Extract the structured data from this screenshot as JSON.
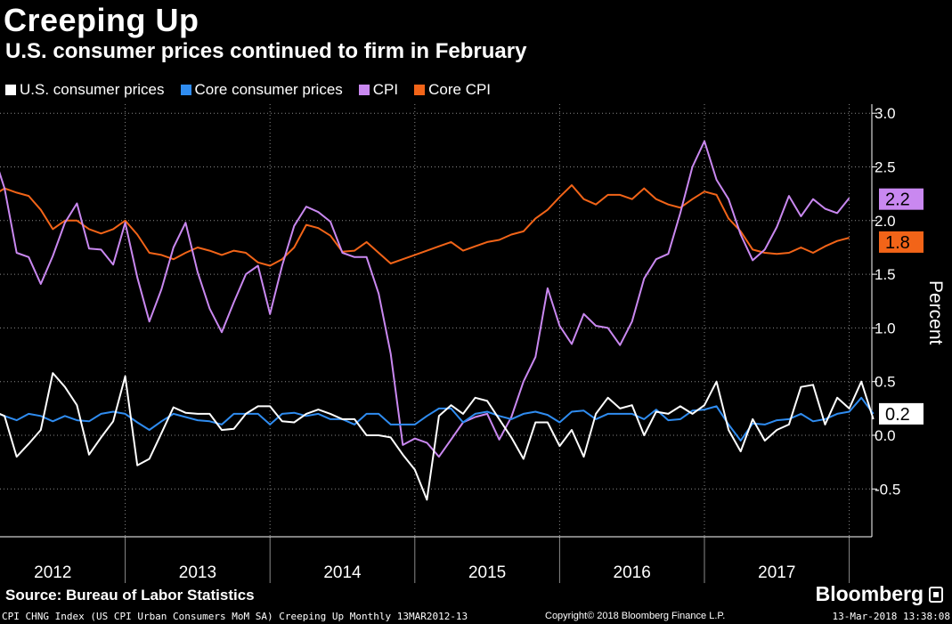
{
  "header": {
    "title": "Creeping Up",
    "subtitle": "U.S. consumer prices continued to firm in February"
  },
  "legend": [
    {
      "label": "U.S. consumer prices",
      "color": "#ffffff"
    },
    {
      "label": "Core consumer prices",
      "color": "#2f8cf0"
    },
    {
      "label": "CPI",
      "color": "#c988f0"
    },
    {
      "label": "Core CPI",
      "color": "#f26418"
    }
  ],
  "footer": {
    "source": "Source: Bureau of Labor Statistics",
    "brand": "Bloomberg",
    "ticker_line": "CPI CHNG Index (US CPI Urban Consumers MoM SA) Creeping Up  Monthly 13MAR2012-13",
    "copyright": "Copyright© 2018 Bloomberg Finance L.P.",
    "timestamp": "13-Mar-2018 13:38:08"
  },
  "chart_data": {
    "type": "line",
    "title": "Creeping Up",
    "subtitle": "U.S. consumer prices continued to firm in February",
    "ylabel": "Percent",
    "ylim": [
      -0.8,
      3.1
    ],
    "yticks": [
      3.0,
      2.5,
      2.0,
      1.5,
      1.0,
      0.5,
      0.0,
      -0.5
    ],
    "ytick_labels": [
      "3.0",
      "2.5",
      "2.0",
      "1.5",
      "1.0",
      "0.5",
      "0.0",
      "-0.5"
    ],
    "x_start": "2012-02",
    "x_end": "2018-02",
    "year_labels": [
      "2012",
      "2013",
      "2014",
      "2015",
      "2016",
      "2017"
    ],
    "grid": true,
    "legend_position": "top-left",
    "end_labels": [
      {
        "series": "CPI",
        "text": "2.2",
        "value": 2.2,
        "bg": "#c988f0",
        "fg": "#000000"
      },
      {
        "series": "Core CPI",
        "text": "1.8",
        "value": 1.8,
        "bg": "#f26418",
        "fg": "#000000"
      },
      {
        "series": "U.S. consumer prices",
        "text": "0.2",
        "value": 0.2,
        "bg": "#ffffff",
        "fg": "#000000"
      }
    ],
    "series": [
      {
        "name": "U.S. consumer prices",
        "color": "#ffffff",
        "values": [
          0.23,
          0.18,
          -0.2,
          -0.08,
          0.05,
          0.58,
          0.45,
          0.28,
          -0.18,
          -0.02,
          0.13,
          0.55,
          -0.28,
          -0.22,
          0.02,
          0.26,
          0.21,
          0.2,
          0.2,
          0.05,
          0.06,
          0.2,
          0.27,
          0.27,
          0.13,
          0.12,
          0.2,
          0.24,
          0.2,
          0.15,
          0.15,
          0.0,
          0.0,
          -0.02,
          -0.18,
          -0.32,
          -0.6,
          0.18,
          0.28,
          0.2,
          0.35,
          0.32,
          0.15,
          -0.02,
          -0.22,
          0.12,
          0.12,
          -0.1,
          0.05,
          -0.2,
          0.2,
          0.35,
          0.25,
          0.28,
          0.0,
          0.22,
          0.2,
          0.27,
          0.2,
          0.28,
          0.5,
          0.05,
          -0.15,
          0.15,
          -0.05,
          0.05,
          0.1,
          0.45,
          0.47,
          0.1,
          0.35,
          0.25,
          0.5,
          0.15
        ]
      },
      {
        "name": "Core consumer prices",
        "color": "#2f8cf0",
        "values": [
          0.22,
          0.18,
          0.14,
          0.2,
          0.18,
          0.13,
          0.18,
          0.14,
          0.13,
          0.2,
          0.22,
          0.2,
          0.12,
          0.05,
          0.13,
          0.2,
          0.17,
          0.14,
          0.13,
          0.1,
          0.2,
          0.2,
          0.2,
          0.1,
          0.2,
          0.21,
          0.18,
          0.2,
          0.15,
          0.15,
          0.1,
          0.2,
          0.2,
          0.1,
          0.1,
          0.1,
          0.18,
          0.25,
          0.25,
          0.12,
          0.2,
          0.22,
          0.18,
          0.15,
          0.2,
          0.22,
          0.19,
          0.12,
          0.22,
          0.23,
          0.15,
          0.2,
          0.2,
          0.2,
          0.15,
          0.24,
          0.14,
          0.15,
          0.23,
          0.24,
          0.27,
          0.1,
          -0.05,
          0.11,
          0.1,
          0.14,
          0.15,
          0.2,
          0.13,
          0.15,
          0.2,
          0.22,
          0.35,
          0.2
        ]
      },
      {
        "name": "CPI",
        "color": "#c988f0",
        "values": [
          2.65,
          2.3,
          1.7,
          1.66,
          1.41,
          1.67,
          1.98,
          2.16,
          1.74,
          1.73,
          1.59,
          1.98,
          1.47,
          1.06,
          1.36,
          1.75,
          1.98,
          1.52,
          1.18,
          0.96,
          1.24,
          1.5,
          1.58,
          1.13,
          1.58,
          1.95,
          2.13,
          2.08,
          1.99,
          1.7,
          1.66,
          1.66,
          1.32,
          0.76,
          -0.09,
          -0.03,
          -0.07,
          -0.2,
          -0.04,
          0.12,
          0.17,
          0.2,
          -0.04,
          0.17,
          0.5,
          0.73,
          1.37,
          1.02,
          0.85,
          1.13,
          1.02,
          1.0,
          0.84,
          1.06,
          1.46,
          1.64,
          1.69,
          2.07,
          2.5,
          2.74,
          2.38,
          2.2,
          1.87,
          1.63,
          1.73,
          1.94,
          2.23,
          2.04,
          2.2,
          2.11,
          2.07,
          2.21
        ]
      },
      {
        "name": "Core CPI",
        "color": "#f26418",
        "values": [
          2.23,
          2.3,
          2.26,
          2.23,
          2.1,
          1.92,
          2.0,
          2.0,
          1.92,
          1.88,
          1.92,
          2.0,
          1.87,
          1.7,
          1.68,
          1.64,
          1.7,
          1.75,
          1.72,
          1.68,
          1.72,
          1.7,
          1.61,
          1.58,
          1.64,
          1.75,
          1.96,
          1.93,
          1.86,
          1.71,
          1.72,
          1.8,
          1.7,
          1.6,
          1.64,
          1.68,
          1.72,
          1.76,
          1.8,
          1.72,
          1.76,
          1.8,
          1.82,
          1.87,
          1.9,
          2.02,
          2.1,
          2.22,
          2.33,
          2.2,
          2.15,
          2.24,
          2.24,
          2.2,
          2.3,
          2.2,
          2.15,
          2.12,
          2.2,
          2.27,
          2.24,
          2.02,
          1.9,
          1.73,
          1.7,
          1.69,
          1.7,
          1.75,
          1.7,
          1.76,
          1.81,
          1.84
        ]
      }
    ]
  }
}
